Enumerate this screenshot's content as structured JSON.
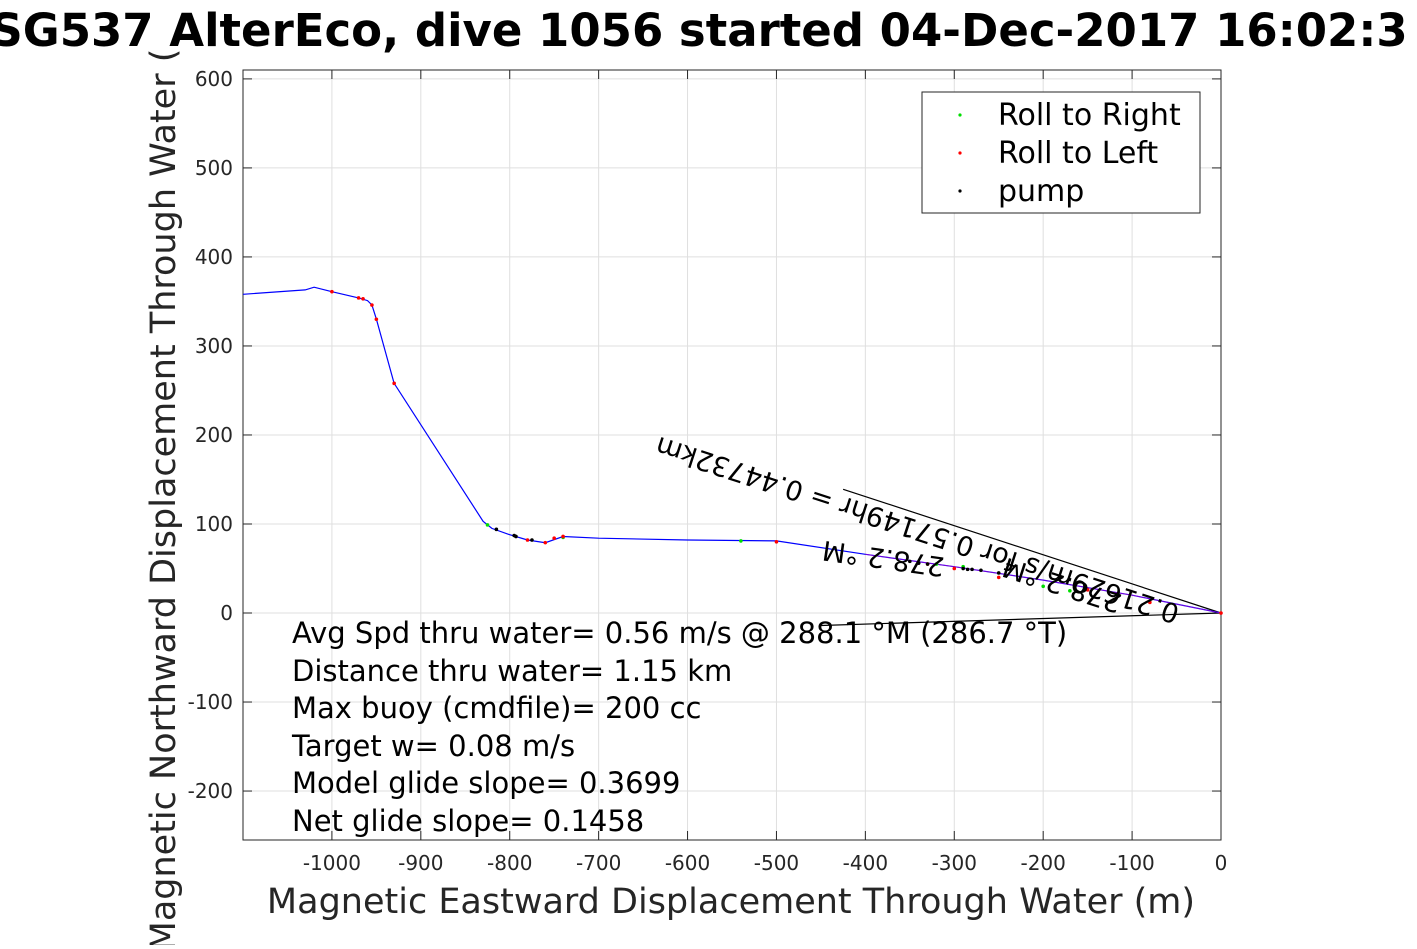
{
  "chart_data": {
    "type": "line",
    "title": "SG537 AlterEco, dive 1056 started 04-Dec-2017 16:02:3",
    "xlabel": "Magnetic Eastward Displacement Through Water (m)",
    "ylabel": "Magnetic Northward Displacement Through Water (",
    "xlim": [
      -1100,
      0
    ],
    "ylim": [
      -255,
      610
    ],
    "xticks": [
      -1000,
      -900,
      -800,
      -700,
      -600,
      -500,
      -400,
      -300,
      -200,
      -100,
      0
    ],
    "xtick_labels": [
      "-1000",
      "-900",
      "-800",
      "-700",
      "-600",
      "-500",
      "-400",
      "-300",
      "-200",
      "-100",
      "0"
    ],
    "yticks": [
      -200,
      -100,
      0,
      100,
      200,
      300,
      400,
      500,
      600
    ],
    "ytick_labels": [
      "-200",
      "-100",
      "0",
      "100",
      "200",
      "300",
      "400",
      "500",
      "600"
    ],
    "grid": true,
    "legend_position": "top-right",
    "legend": [
      {
        "label": "Roll to Right",
        "color": "#00dd00"
      },
      {
        "label": "Roll to Left",
        "color": "#ff0000"
      },
      {
        "label": "pump",
        "color": "#000000"
      }
    ],
    "track": {
      "color": "#0000ff",
      "x": [
        -1100,
        -1030,
        -1020,
        -1000,
        -970,
        -960,
        -955,
        -950,
        -930,
        -830,
        -820,
        -800,
        -780,
        -760,
        -740,
        -700,
        -600,
        -500,
        -400,
        -300,
        -200,
        -100,
        -40,
        0
      ],
      "y": [
        358,
        363,
        366,
        361,
        354,
        351,
        346,
        330,
        258,
        103,
        95,
        88,
        82,
        79,
        86,
        84,
        82,
        81,
        66,
        52,
        37,
        20,
        8,
        0
      ]
    },
    "roll_right_points": {
      "x": [
        -825,
        -740,
        -540,
        -320,
        -290,
        -200,
        -170
      ],
      "y": [
        99,
        85,
        81,
        55,
        52,
        30,
        25
      ]
    },
    "roll_left_points": {
      "x": [
        -1000,
        -970,
        -965,
        -955,
        -950,
        -930,
        -780,
        -760,
        -750,
        -740,
        -500,
        -330,
        -300,
        -250,
        -150,
        -80,
        0
      ],
      "y": [
        361,
        354,
        353,
        346,
        330,
        258,
        82,
        79,
        84,
        86,
        80,
        55,
        50,
        40,
        26,
        12,
        0
      ]
    },
    "pump_points": {
      "x": [
        -815,
        -795,
        -793,
        -775,
        -350,
        -340,
        -330,
        -290,
        -285,
        -280,
        -270,
        -250
      ],
      "y": [
        94,
        87,
        86,
        82,
        58,
        56,
        55,
        50,
        49,
        49,
        48,
        45
      ]
    },
    "black_lines": [
      {
        "x": [
          -425,
          0
        ],
        "y": [
          139,
          0
        ]
      },
      {
        "x": [
          -450,
          0
        ],
        "y": [
          -14,
          0
        ]
      }
    ],
    "rotated_annotations": [
      {
        "text": "0.21629m/s for 0.57149hr = 0.44732km",
        "anchor_x": -45,
        "anchor_y": 8,
        "angle_deg": 18
      },
      {
        "text": "278.2 °M",
        "anchor_x": -110,
        "anchor_y": 20,
        "angle_deg": 18
      },
      {
        "text": "278.2 °M",
        "anchor_x": -310,
        "anchor_y": 62,
        "angle_deg": 8
      }
    ],
    "annotation_box_lines": [
      "Avg Spd thru water=  0.56 m/s @ 288.1 °M (286.7 °T)",
      "Distance thru water=  1.15 km",
      "Max buoy (cmdfile)= 200 cc",
      "Target w= 0.08 m/s",
      "Model glide slope= 0.3699",
      "Net glide slope= 0.1458"
    ]
  }
}
